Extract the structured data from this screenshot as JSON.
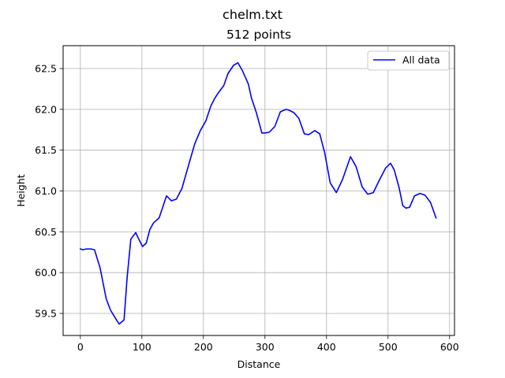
{
  "figure": {
    "suptitle": "chelm.txt"
  },
  "chart_data": {
    "type": "line",
    "title": "512 points",
    "xlabel": "Distance",
    "ylabel": "Height",
    "xlim": [
      -28,
      608
    ],
    "ylim": [
      59.23,
      62.78
    ],
    "xticks": [
      0,
      100,
      200,
      300,
      400,
      500,
      600
    ],
    "yticks": [
      59.5,
      60.0,
      60.5,
      61.0,
      61.5,
      62.0,
      62.5
    ],
    "xtick_labels": [
      "0",
      "100",
      "200",
      "300",
      "400",
      "500",
      "600"
    ],
    "ytick_labels": [
      "59.5",
      "60.0",
      "60.5",
      "61.0",
      "61.5",
      "62.0",
      "62.5"
    ],
    "grid": true,
    "legend": {
      "position": "upper right",
      "entries": [
        "All data"
      ]
    },
    "series": [
      {
        "name": "All data",
        "color": "#0000ff",
        "x": [
          0,
          4,
          10,
          17,
          23,
          32,
          42,
          49,
          58,
          63,
          71,
          76,
          82,
          90,
          93,
          101,
          107,
          113,
          119,
          128,
          140,
          148,
          156,
          165,
          176,
          186,
          195,
          204,
          212,
          218,
          224,
          233,
          240,
          249,
          256,
          263,
          273,
          278,
          286,
          295,
          300,
          307,
          316,
          325,
          334,
          339,
          347,
          355,
          364,
          371,
          381,
          389,
          397,
          406,
          416,
          426,
          439,
          448,
          458,
          467,
          476,
          487,
          496,
          504,
          510,
          518,
          524,
          529,
          535,
          543,
          552,
          560,
          569,
          578
        ],
        "y": [
          60.29,
          60.28,
          60.29,
          60.29,
          60.28,
          60.06,
          59.68,
          59.54,
          59.43,
          59.37,
          59.42,
          59.94,
          60.41,
          60.49,
          60.44,
          60.32,
          60.36,
          60.53,
          60.61,
          60.67,
          60.94,
          60.88,
          60.9,
          61.03,
          61.32,
          61.58,
          61.74,
          61.86,
          62.04,
          62.13,
          62.2,
          62.29,
          62.44,
          62.54,
          62.57,
          62.48,
          62.31,
          62.14,
          61.96,
          61.71,
          61.71,
          61.72,
          61.79,
          61.97,
          62.0,
          61.99,
          61.96,
          61.89,
          61.7,
          61.69,
          61.74,
          61.7,
          61.47,
          61.1,
          60.98,
          61.14,
          61.42,
          61.3,
          61.05,
          60.96,
          60.98,
          61.15,
          61.28,
          61.34,
          61.26,
          61.04,
          60.82,
          60.79,
          60.8,
          60.94,
          60.97,
          60.95,
          60.86,
          60.67
        ]
      }
    ]
  }
}
